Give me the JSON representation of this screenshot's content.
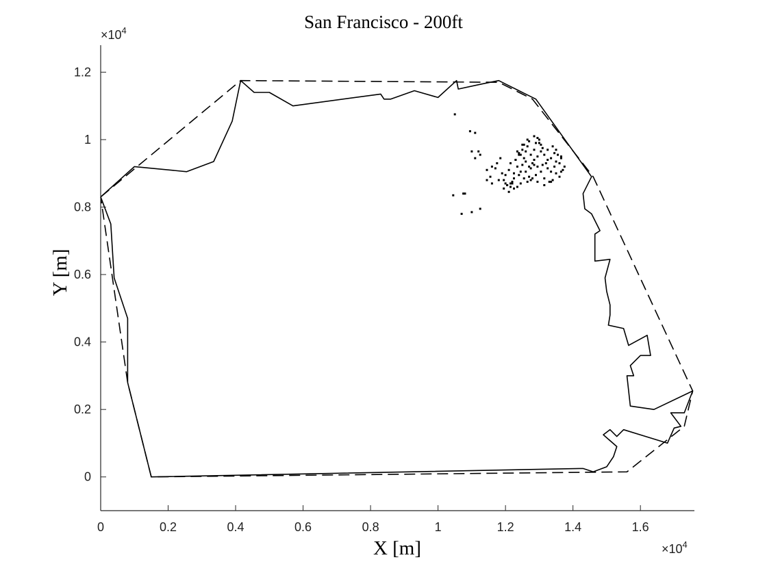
{
  "chart_data": {
    "type": "line",
    "title": "San Francisco - 200ft",
    "xlabel": "X [m]",
    "ylabel": "Y [m]",
    "xlim": [
      0,
      17600
    ],
    "ylim": [
      -1000,
      12800
    ],
    "x_ticks": [
      0,
      2000,
      4000,
      6000,
      8000,
      10000,
      12000,
      14000,
      16000
    ],
    "x_tick_labels": [
      "0",
      "0.2",
      "0.4",
      "0.6",
      "0.8",
      "1",
      "1.2",
      "1.4",
      "1.6"
    ],
    "y_ticks": [
      0,
      2000,
      4000,
      6000,
      8000,
      10000,
      12000
    ],
    "y_tick_labels": [
      "0",
      "0.2",
      "0.4",
      "0.6",
      "0.8",
      "1",
      "1.2"
    ],
    "x_exponent": "×10",
    "x_exponent_power": "4",
    "y_exponent": "×10",
    "y_exponent_power": "4",
    "grid": false,
    "legend": "none",
    "series": [
      {
        "style": "solid",
        "x": [
          0,
          1000,
          2550,
          3350,
          3900,
          4150,
          4550,
          5000,
          5700,
          8300,
          8400,
          8600,
          9300,
          10000,
          10550,
          10600,
          11300,
          11800,
          12000,
          12400,
          12900,
          14550,
          14300,
          14350,
          14550,
          14800,
          14650,
          14650,
          15100,
          14950,
          15000,
          15100,
          15100,
          15050,
          15500,
          15650,
          16200,
          16300,
          16000,
          15700,
          15800,
          15600,
          15700,
          16400,
          17550,
          17300,
          16900,
          17200,
          17000,
          16800,
          15500,
          15300,
          15100,
          14900,
          15300,
          15200,
          15000,
          14600,
          14300,
          14200,
          1500,
          800,
          800,
          400,
          300,
          0
        ],
        "y": [
          8300,
          9200,
          9050,
          9350,
          10550,
          11750,
          11400,
          11400,
          11000,
          11350,
          11200,
          11200,
          11450,
          11250,
          11750,
          11500,
          11650,
          11750,
          11650,
          11450,
          11200,
          8900,
          8400,
          7950,
          7800,
          7300,
          7200,
          6400,
          6450,
          5900,
          5500,
          5100,
          4800,
          4500,
          4400,
          3900,
          4200,
          3600,
          3600,
          3300,
          3000,
          3000,
          2100,
          2000,
          2550,
          1900,
          1900,
          1500,
          1450,
          1000,
          1400,
          1200,
          1400,
          1250,
          900,
          600,
          300,
          150,
          250,
          250,
          0,
          2800,
          4700,
          5900,
          7500,
          8300
        ]
      },
      {
        "style": "dashed",
        "x": [
          0,
          4150,
          11800,
          12800,
          14600,
          17550,
          17300,
          15600,
          1500,
          800,
          0
        ],
        "y": [
          8300,
          11750,
          11700,
          11200,
          8900,
          2550,
          1500,
          150,
          0,
          2800,
          8300
        ]
      },
      {
        "style": "points",
        "x": [
          10500,
          10450,
          10700,
          10750,
          10800,
          11000,
          11250,
          10950,
          11100,
          11000,
          11100,
          11200,
          11250,
          11450,
          11600,
          11700,
          11550,
          11450,
          11600,
          11800,
          11900,
          11750,
          11850,
          12100,
          12000,
          11950,
          12050,
          12150,
          12200,
          12250,
          12150,
          12350,
          12300,
          12400,
          12500,
          12450,
          12550,
          12650,
          12700,
          12600,
          12750,
          12850,
          12900,
          12950,
          13000,
          13050,
          12800,
          12700,
          12600,
          12550,
          12500,
          12400,
          12350,
          12300,
          12450,
          12600,
          12750,
          12850,
          12950,
          13100,
          13200,
          13250,
          13350,
          13450,
          13500,
          13600,
          13650,
          13550,
          13450,
          13350,
          13250,
          13150,
          13050,
          12950,
          12850,
          12700,
          12550,
          12400,
          12250,
          12200,
          12650,
          12750,
          12900,
          13050,
          13150,
          13300,
          13400,
          13600,
          13650,
          13700,
          13750,
          13500,
          13350,
          13150,
          12950,
          12800,
          12450,
          12350,
          12150,
          12050,
          12500,
          12650,
          12850,
          13000,
          13100,
          13250,
          13400,
          13500,
          13650,
          11950,
          12100,
          12250,
          12000
        ],
        "y": [
          10750,
          8350,
          7800,
          8400,
          8400,
          7850,
          7950,
          10250,
          10200,
          9650,
          9450,
          9650,
          9550,
          9100,
          9200,
          9150,
          8900,
          8800,
          8700,
          8800,
          9000,
          9300,
          9450,
          9100,
          8950,
          8800,
          8650,
          8600,
          8700,
          8850,
          9300,
          9200,
          9400,
          9600,
          9700,
          9550,
          9850,
          9800,
          9950,
          9650,
          9550,
          9700,
          9900,
          10050,
          10000,
          9850,
          9300,
          9200,
          9350,
          9450,
          9250,
          9550,
          9650,
          9400,
          9050,
          9050,
          9150,
          9250,
          9200,
          9250,
          9300,
          9150,
          9050,
          9200,
          9350,
          9300,
          9450,
          9550,
          9600,
          9450,
          9400,
          9550,
          9650,
          9500,
          9400,
          8900,
          8850,
          8950,
          9000,
          8750,
          8750,
          8800,
          8950,
          9050,
          8850,
          8750,
          8800,
          8900,
          9050,
          9100,
          9200,
          9000,
          8750,
          8650,
          8750,
          8850,
          8700,
          8600,
          8700,
          8650,
          9850,
          10000,
          10100,
          9900,
          9750,
          9700,
          9800,
          9700,
          9500,
          8550,
          8450,
          8550,
          8700
        ]
      }
    ]
  }
}
